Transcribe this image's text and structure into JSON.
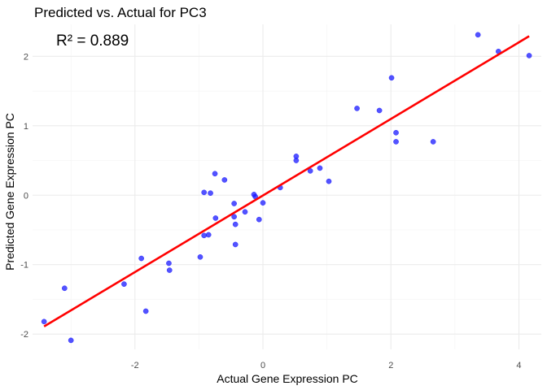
{
  "chart_data": {
    "type": "scatter",
    "title": "Predicted vs. Actual for PC3",
    "xlabel": "Actual Gene Expression PC",
    "ylabel": "Predicted Gene Expression PC",
    "xlim": [
      -3.6,
      4.35
    ],
    "ylim": [
      -2.22,
      2.46
    ],
    "x_ticks": [
      -2,
      0,
      2,
      4
    ],
    "x_tick_labels": [
      "-2",
      "0",
      "2",
      "4"
    ],
    "y_ticks": [
      -2,
      -1,
      0,
      1,
      2
    ],
    "y_tick_labels": [
      "-2",
      "-1",
      "0",
      "1",
      "2"
    ],
    "grid": true,
    "annotation": "R² = 0.889",
    "point_color": "#1a1aff",
    "line_color": "#ff0000",
    "series": [
      {
        "name": "observations",
        "points": [
          [
            -3.42,
            -1.82
          ],
          [
            -3.1,
            -1.34
          ],
          [
            -3.0,
            -2.09
          ],
          [
            -2.17,
            -1.28
          ],
          [
            -1.9,
            -0.91
          ],
          [
            -1.83,
            -1.67
          ],
          [
            -1.47,
            -0.98
          ],
          [
            -1.46,
            -1.08
          ],
          [
            -0.98,
            -0.89
          ],
          [
            -0.92,
            0.04
          ],
          [
            -0.92,
            -0.58
          ],
          [
            -0.85,
            -0.57
          ],
          [
            -0.82,
            0.03
          ],
          [
            -0.75,
            0.31
          ],
          [
            -0.74,
            -0.33
          ],
          [
            -0.6,
            0.22
          ],
          [
            -0.45,
            -0.12
          ],
          [
            -0.45,
            -0.31
          ],
          [
            -0.43,
            -0.42
          ],
          [
            -0.43,
            -0.71
          ],
          [
            -0.28,
            -0.24
          ],
          [
            -0.14,
            0.01
          ],
          [
            -0.12,
            -0.02
          ],
          [
            -0.06,
            -0.35
          ],
          [
            0.0,
            -0.11
          ],
          [
            0.27,
            0.11
          ],
          [
            0.52,
            0.56
          ],
          [
            0.52,
            0.5
          ],
          [
            0.74,
            0.35
          ],
          [
            0.89,
            0.39
          ],
          [
            1.03,
            0.2
          ],
          [
            1.47,
            1.25
          ],
          [
            1.82,
            1.22
          ],
          [
            2.01,
            1.69
          ],
          [
            2.08,
            0.9
          ],
          [
            2.08,
            0.77
          ],
          [
            2.66,
            0.77
          ],
          [
            3.36,
            2.31
          ],
          [
            3.68,
            2.07
          ],
          [
            4.16,
            2.01
          ]
        ]
      }
    ],
    "fit_line": {
      "x": [
        -3.42,
        4.16
      ],
      "y": [
        -1.89,
        2.29
      ]
    }
  }
}
